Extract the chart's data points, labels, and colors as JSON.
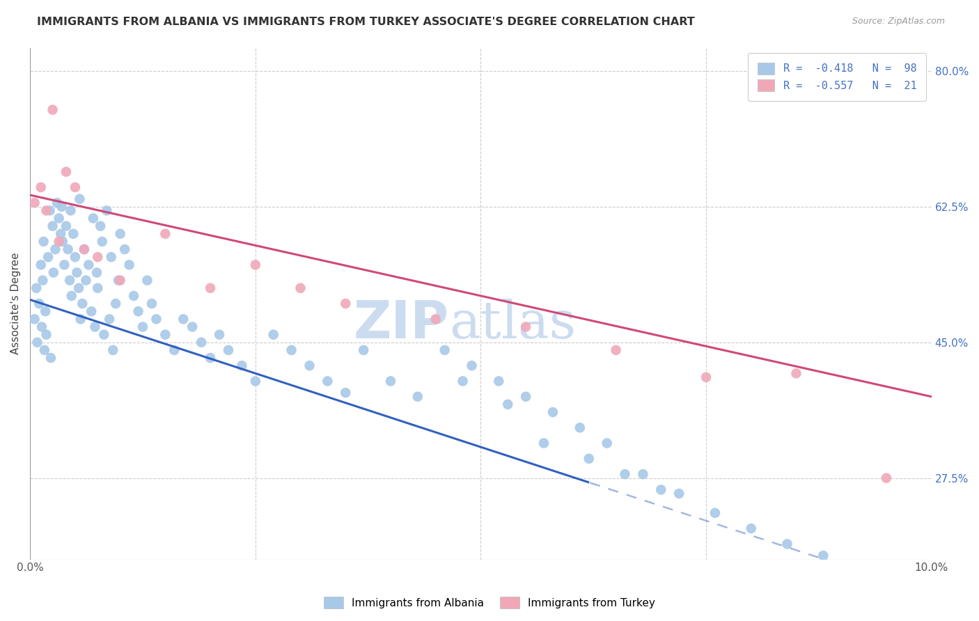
{
  "title": "IMMIGRANTS FROM ALBANIA VS IMMIGRANTS FROM TURKEY ASSOCIATE'S DEGREE CORRELATION CHART",
  "source": "Source: ZipAtlas.com",
  "ylabel": "Associate's Degree",
  "xlim": [
    0.0,
    10.0
  ],
  "ylim": [
    17.0,
    83.0
  ],
  "y_ticks": [
    27.5,
    45.0,
    62.5,
    80.0
  ],
  "x_ticks": [
    0.0,
    2.5,
    5.0,
    7.5,
    10.0
  ],
  "x_tick_labels": [
    "0.0%",
    "",
    "",
    "",
    "10.0%"
  ],
  "y_tick_right_labels": [
    "27.5%",
    "45.0%",
    "62.5%",
    "80.0%"
  ],
  "legend_r_alb": "R =  -0.418",
  "legend_n_alb": "N =  98",
  "legend_r_tur": "R =  -0.557",
  "legend_n_tur": "N =  21",
  "legend_label_alb": "Immigrants from Albania",
  "legend_label_tur": "Immigrants from Turkey",
  "blue_color": "#a8c8e8",
  "pink_color": "#f0a8b8",
  "blue_line_color": "#3060c0",
  "pink_line_color": "#d04878",
  "watermark": "ZIPatlas",
  "watermark_color": "#ccdcf0",
  "title_fontsize": 11.5,
  "source_fontsize": 9,
  "tick_fontsize": 11,
  "legend_fontsize": 11,
  "alb_intercept": 50.5,
  "alb_slope": -3.8,
  "tur_intercept": 64.0,
  "tur_slope": -2.6,
  "alb_x_max_solid": 6.2,
  "tur_x_max_solid": 10.0,
  "albania_x": [
    0.05,
    0.07,
    0.08,
    0.1,
    0.12,
    0.13,
    0.14,
    0.15,
    0.16,
    0.17,
    0.18,
    0.2,
    0.22,
    0.23,
    0.25,
    0.26,
    0.28,
    0.3,
    0.32,
    0.34,
    0.35,
    0.36,
    0.38,
    0.4,
    0.42,
    0.44,
    0.45,
    0.46,
    0.48,
    0.5,
    0.52,
    0.54,
    0.55,
    0.56,
    0.58,
    0.6,
    0.62,
    0.65,
    0.68,
    0.7,
    0.72,
    0.74,
    0.75,
    0.78,
    0.8,
    0.82,
    0.85,
    0.88,
    0.9,
    0.92,
    0.95,
    0.98,
    1.0,
    1.05,
    1.1,
    1.15,
    1.2,
    1.25,
    1.3,
    1.35,
    1.4,
    1.5,
    1.6,
    1.7,
    1.8,
    1.9,
    2.0,
    2.1,
    2.2,
    2.35,
    2.5,
    2.7,
    2.9,
    3.1,
    3.3,
    3.5,
    3.7,
    4.0,
    4.3,
    4.6,
    4.9,
    5.2,
    5.5,
    5.8,
    6.1,
    6.4,
    6.8,
    7.2,
    7.6,
    8.0,
    8.4,
    8.8,
    4.8,
    5.3,
    5.7,
    6.2,
    6.6,
    7.0
  ],
  "albania_y": [
    48.0,
    52.0,
    45.0,
    50.0,
    55.0,
    47.0,
    53.0,
    58.0,
    44.0,
    49.0,
    46.0,
    56.0,
    62.0,
    43.0,
    60.0,
    54.0,
    57.0,
    63.0,
    61.0,
    59.0,
    62.5,
    58.0,
    55.0,
    60.0,
    57.0,
    53.0,
    62.0,
    51.0,
    59.0,
    56.0,
    54.0,
    52.0,
    63.5,
    48.0,
    50.0,
    57.0,
    53.0,
    55.0,
    49.0,
    61.0,
    47.0,
    54.0,
    52.0,
    60.0,
    58.0,
    46.0,
    62.0,
    48.0,
    56.0,
    44.0,
    50.0,
    53.0,
    59.0,
    57.0,
    55.0,
    51.0,
    49.0,
    47.0,
    53.0,
    50.0,
    48.0,
    46.0,
    44.0,
    48.0,
    47.0,
    45.0,
    43.0,
    46.0,
    44.0,
    42.0,
    40.0,
    46.0,
    44.0,
    42.0,
    40.0,
    38.5,
    44.0,
    40.0,
    38.0,
    44.0,
    42.0,
    40.0,
    38.0,
    36.0,
    34.0,
    32.0,
    28.0,
    25.5,
    23.0,
    21.0,
    19.0,
    17.5,
    40.0,
    37.0,
    32.0,
    30.0,
    28.0,
    26.0
  ],
  "turkey_x": [
    0.05,
    0.12,
    0.18,
    0.25,
    0.32,
    0.4,
    0.5,
    0.6,
    0.75,
    1.0,
    1.5,
    2.0,
    2.5,
    3.0,
    3.5,
    4.5,
    5.5,
    6.5,
    7.5,
    8.5,
    9.5
  ],
  "turkey_y": [
    63.0,
    65.0,
    62.0,
    75.0,
    58.0,
    67.0,
    65.0,
    57.0,
    56.0,
    53.0,
    59.0,
    52.0,
    55.0,
    52.0,
    50.0,
    48.0,
    47.0,
    44.0,
    40.5,
    41.0,
    27.5
  ]
}
